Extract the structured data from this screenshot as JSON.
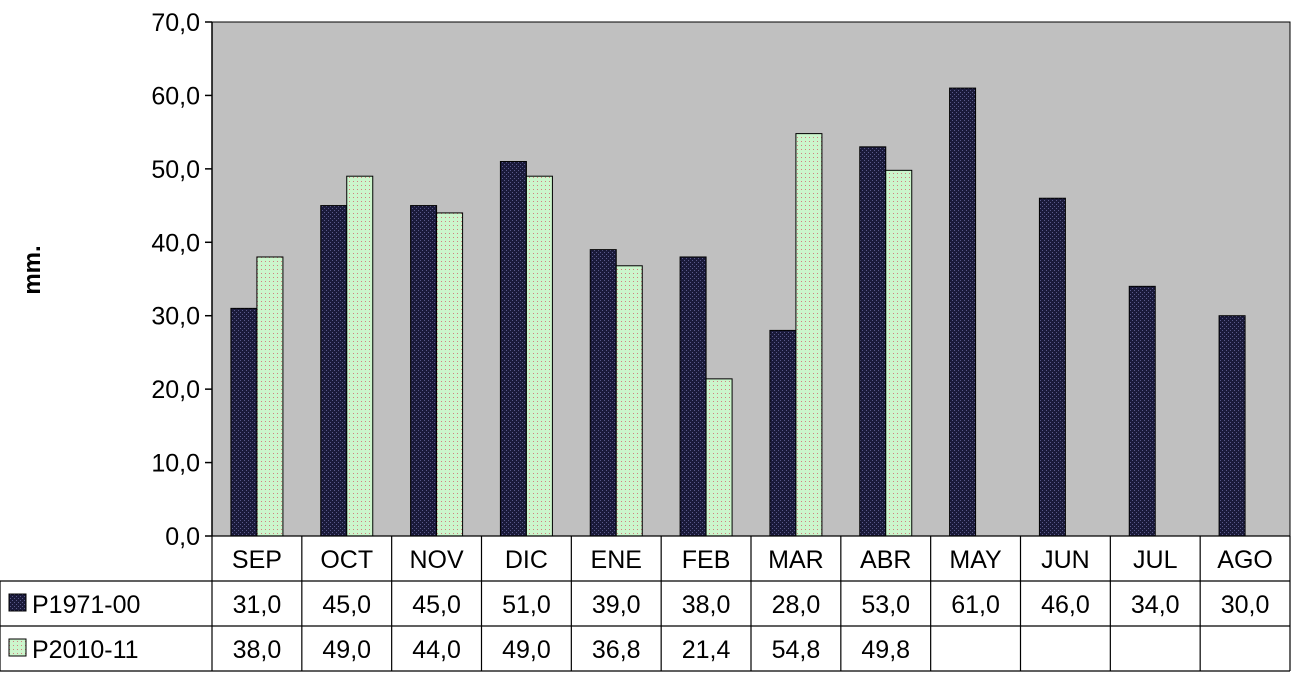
{
  "chart_data": {
    "type": "bar",
    "categories": [
      "SEP",
      "OCT",
      "NOV",
      "DIC",
      "ENE",
      "FEB",
      "MAR",
      "ABR",
      "MAY",
      "JUN",
      "JUL",
      "AGO"
    ],
    "series": [
      {
        "name": "P1971-00",
        "values": [
          31.0,
          45.0,
          45.0,
          51.0,
          39.0,
          38.0,
          28.0,
          53.0,
          61.0,
          46.0,
          34.0,
          30.0
        ],
        "labels": [
          "31,0",
          "45,0",
          "45,0",
          "51,0",
          "39,0",
          "38,0",
          "28,0",
          "53,0",
          "61,0",
          "46,0",
          "34,0",
          "30,0"
        ],
        "color": "#1a1a3a"
      },
      {
        "name": "P2010-11",
        "values": [
          38.0,
          49.0,
          44.0,
          49.0,
          36.8,
          21.4,
          54.8,
          49.8,
          null,
          null,
          null,
          null
        ],
        "labels": [
          "38,0",
          "49,0",
          "44,0",
          "49,0",
          "36,8",
          "21,4",
          "54,8",
          "49,8",
          "",
          "",
          "",
          ""
        ],
        "color": "#ccf5cc"
      }
    ],
    "ylabel": "mm.",
    "ylim": [
      0,
      70
    ],
    "yticks": [
      "0,0",
      "10,0",
      "20,0",
      "30,0",
      "40,0",
      "50,0",
      "60,0",
      "70,0"
    ],
    "plot_background": "#c0c0c0",
    "legend": "data-table"
  }
}
